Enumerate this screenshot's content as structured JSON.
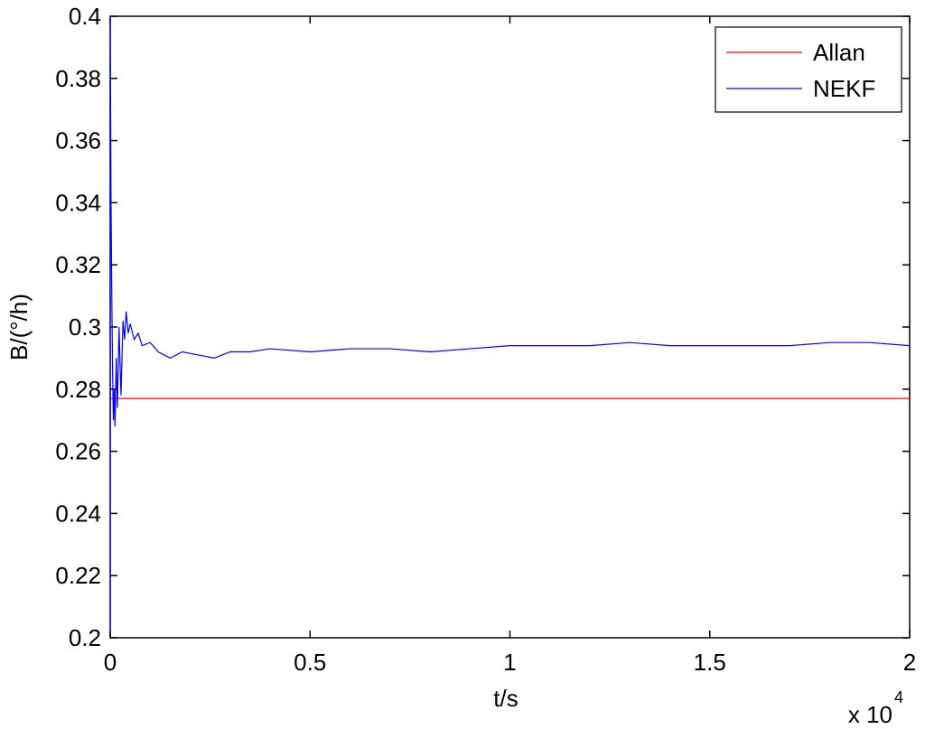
{
  "chart_data": {
    "type": "line",
    "x_label": "t/s",
    "y_label": "B/(°/h)",
    "x_multiplier": {
      "base": "x 10",
      "exponent": "4"
    },
    "xlim": [
      0,
      2
    ],
    "xticks": [
      0,
      0.5,
      1,
      1.5,
      2
    ],
    "ylim": [
      0.2,
      0.4
    ],
    "yticks": [
      0.2,
      0.22,
      0.24,
      0.26,
      0.28,
      0.3,
      0.32,
      0.34,
      0.36,
      0.38,
      0.4
    ],
    "legend": "upper right",
    "series": [
      {
        "name": "Allan",
        "color": "#ff0000",
        "x": [
          0,
          2
        ],
        "values": [
          0.277,
          0.277
        ]
      },
      {
        "name": "NEKF",
        "color": "#0000ff",
        "x": [
          0,
          0,
          0.002,
          0.004,
          0.006,
          0.008,
          0.01,
          0.012,
          0.015,
          0.018,
          0.022,
          0.027,
          0.032,
          0.036,
          0.04,
          0.045,
          0.05,
          0.06,
          0.07,
          0.08,
          0.1,
          0.12,
          0.15,
          0.18,
          0.22,
          0.26,
          0.3,
          0.35,
          0.4,
          0.5,
          0.6,
          0.7,
          0.8,
          0.9,
          1.0,
          1.1,
          1.2,
          1.3,
          1.4,
          1.5,
          1.6,
          1.7,
          1.8,
          1.9,
          2.0
        ],
        "values": [
          0.202,
          0.4,
          0.342,
          0.31,
          0.285,
          0.27,
          0.28,
          0.268,
          0.29,
          0.274,
          0.3,
          0.278,
          0.302,
          0.296,
          0.305,
          0.298,
          0.301,
          0.296,
          0.298,
          0.294,
          0.295,
          0.292,
          0.29,
          0.292,
          0.291,
          0.29,
          0.292,
          0.292,
          0.293,
          0.292,
          0.293,
          0.293,
          0.292,
          0.293,
          0.294,
          0.294,
          0.294,
          0.295,
          0.294,
          0.294,
          0.294,
          0.294,
          0.295,
          0.295,
          0.294
        ]
      }
    ]
  }
}
